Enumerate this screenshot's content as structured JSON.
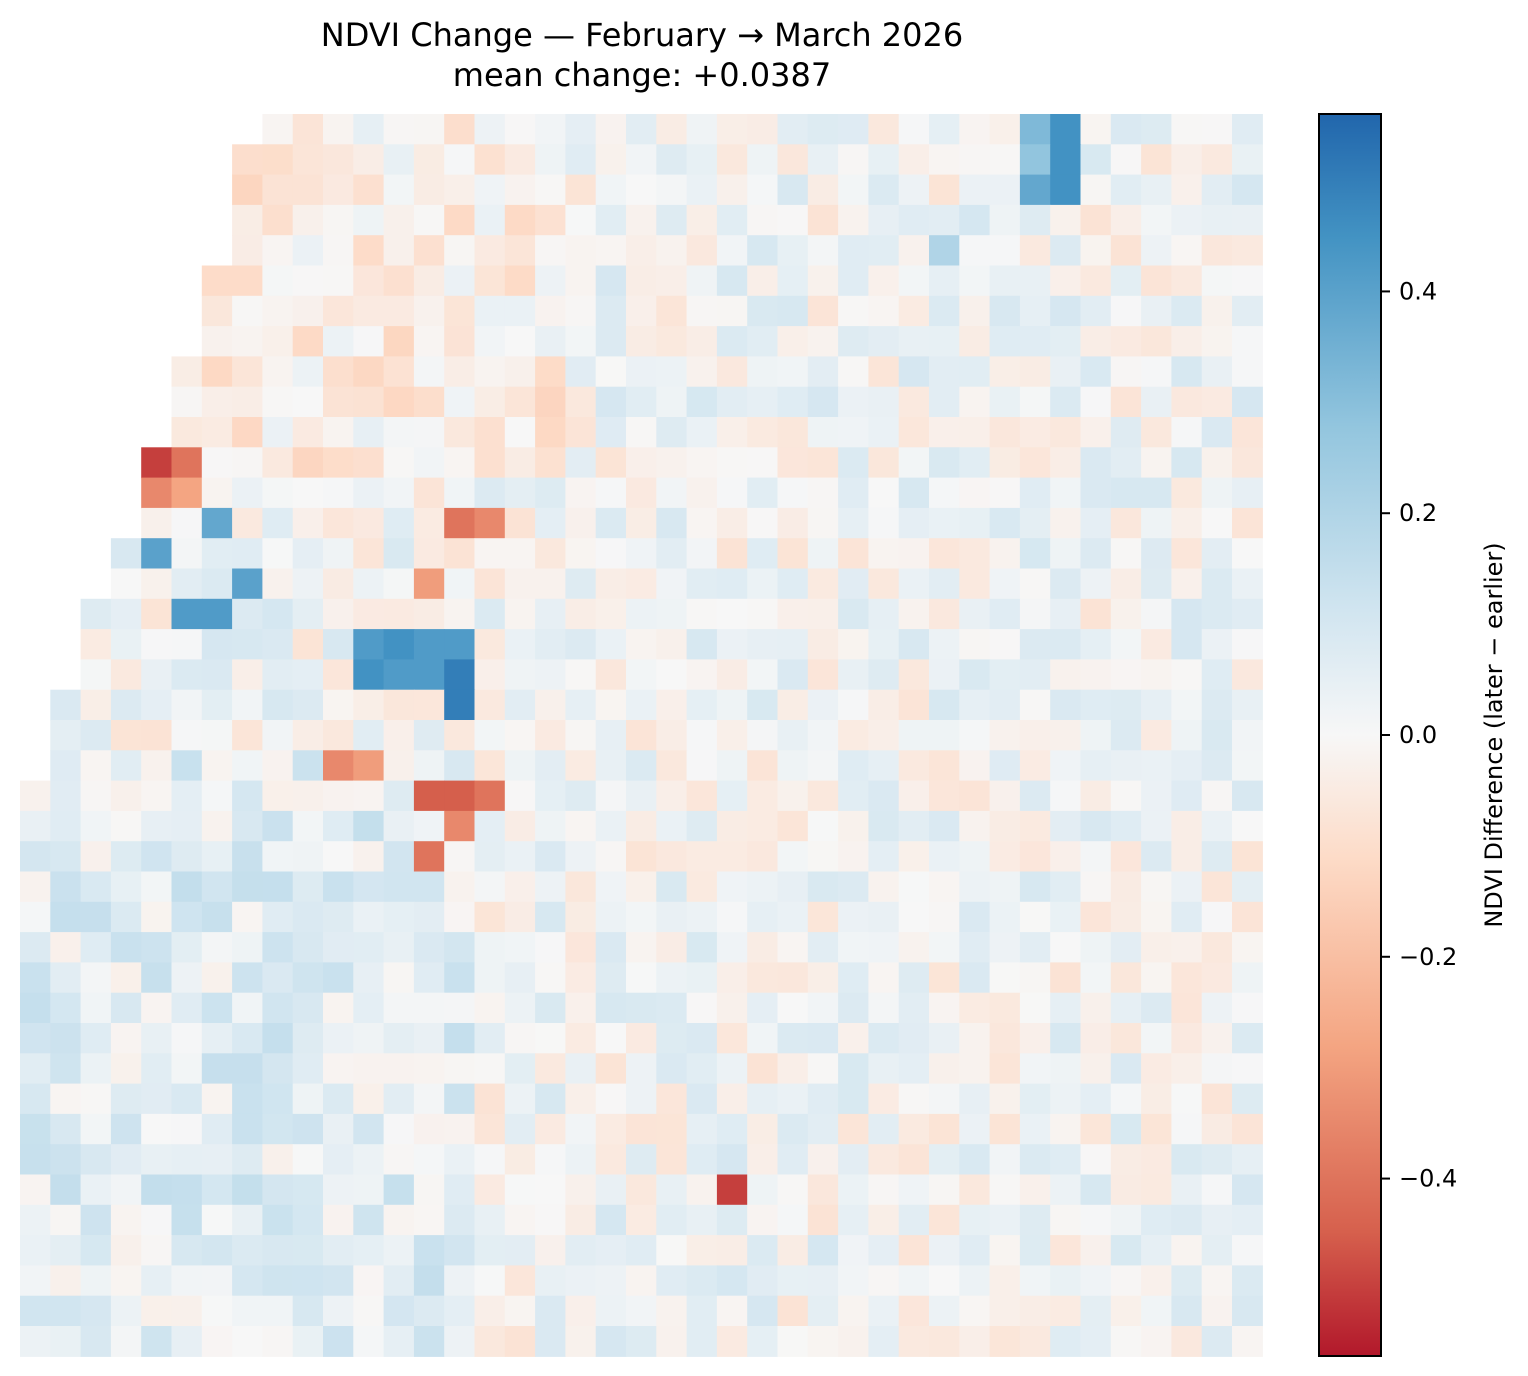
{
  "chart_data": {
    "type": "heatmap",
    "title": "NDVI Change — February → March 2026",
    "subtitle": "mean change: +0.0387",
    "colorbar": {
      "label": "NDVI Difference (later − earlier)",
      "range": [
        -0.56,
        0.56
      ],
      "ticks": [
        0.4,
        0.2,
        0.0,
        -0.2,
        -0.4
      ],
      "tick_labels": [
        "0.4",
        "0.2",
        "0.0",
        "−0.2",
        "−0.4"
      ],
      "colormap": "RdBu diverging",
      "low_color": "#b2182b",
      "mid_color": "#f7f7f7",
      "high_color": "#2166ac"
    },
    "grid": {
      "rows": 41,
      "cols": 41,
      "nodata": "outside footprint (upper-left) shown blank"
    },
    "notable_cells": [
      {
        "row": 11,
        "col": 4,
        "value": -0.5
      },
      {
        "row": 22,
        "col": 14,
        "value": -0.45
      },
      {
        "row": 35,
        "col": 23,
        "value": -0.5
      },
      {
        "row": 19,
        "col": 14,
        "value": 0.5
      },
      {
        "row": 0,
        "col": 34,
        "value": 0.45
      },
      {
        "row": 17,
        "col": 12,
        "value": 0.45
      }
    ]
  }
}
